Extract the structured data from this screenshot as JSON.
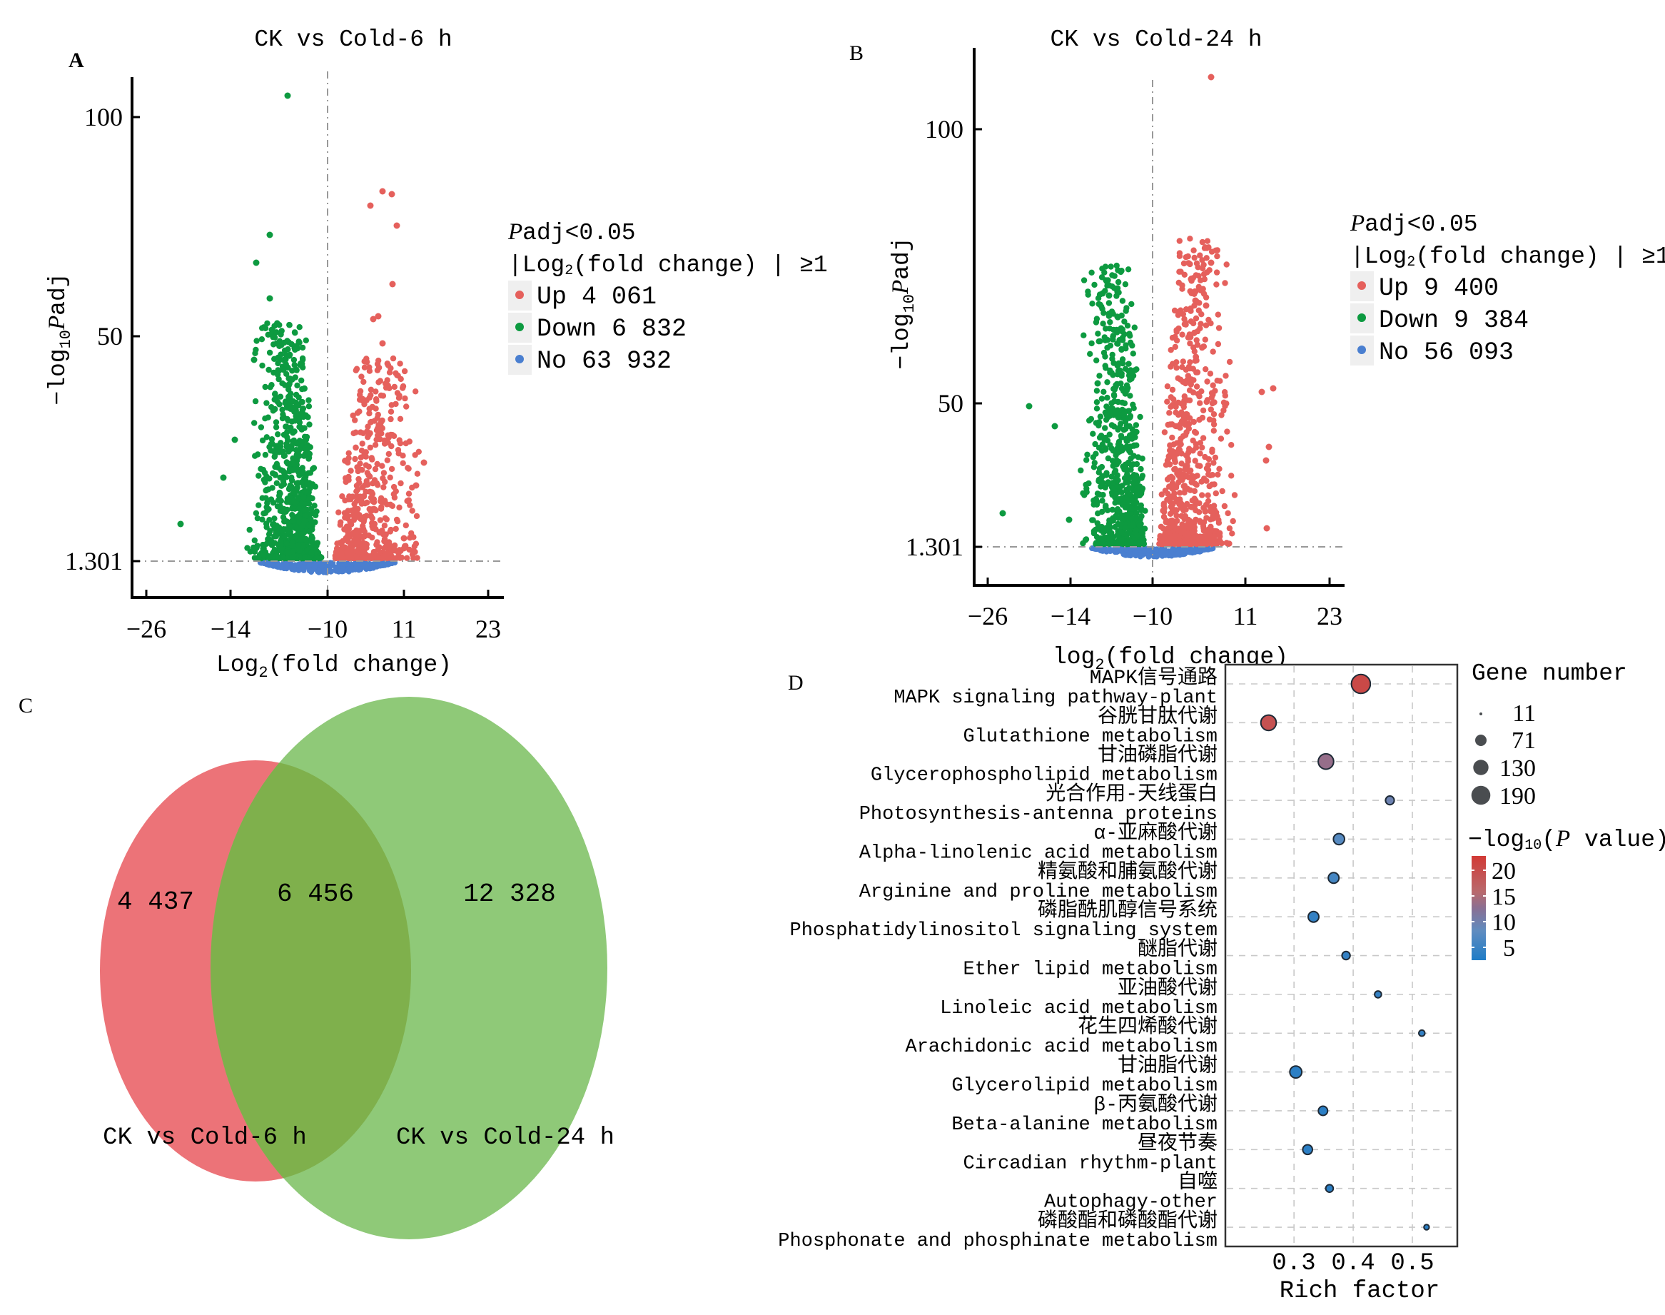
{
  "panels": {
    "A": {
      "letter": "A"
    },
    "B": {
      "letter": "B"
    },
    "C": {
      "letter": "C"
    },
    "D": {
      "letter": "D"
    }
  },
  "colors": {
    "up": "#e5605c",
    "down": "#0d9a40",
    "no": "#4a7fd0",
    "venn_left": "#ec7378",
    "venn_right": "#86c56e",
    "venn_overlap": "#7fb04c",
    "colorbar_high": "#d23a35",
    "colorbar_mid": "#8a6f93",
    "colorbar_low": "#1e7cc6"
  },
  "chart_data": [
    {
      "id": "A",
      "type": "scatter",
      "title": "CK vs Cold-6 h",
      "xlabel": "Log2(fold change)",
      "xlabel_base": "Log",
      "xlabel_sub": "2",
      "xlabel_rest": "(fold change)",
      "ylabel": "-log10 Padj",
      "ylabel_prefix": "−log",
      "ylabel_sub": "10",
      "ylabel_italic": "P",
      "ylabel_rest": "adj",
      "x_ticks": [
        "−26",
        "−14",
        "−10",
        "11",
        "23"
      ],
      "y_ticks": [
        "100",
        "50",
        "1.301"
      ],
      "threshold_y": "1.301",
      "legend": {
        "title_italic": "P",
        "title_rest": "adj<0.05",
        "subtitle": "|Log2(fold change)|≥1",
        "subtitle_base": "|Log",
        "subtitle_sub": "2",
        "subtitle_rest": "(fold change) | ≥1",
        "entries": [
          {
            "name": "Up",
            "count": "4 061",
            "label": "Up 4 061",
            "color_key": "up"
          },
          {
            "name": "Down",
            "count": "6 832",
            "label": "Down 6 832",
            "color_key": "down"
          },
          {
            "name": "No",
            "count": "63 932",
            "label": "No 63 932",
            "color_key": "no"
          }
        ]
      },
      "series": [
        {
          "name": "Up",
          "count": 4061
        },
        {
          "name": "Down",
          "count": 6832
        },
        {
          "name": "No",
          "count": 63932
        }
      ],
      "max_points_approx": {
        "down_max_y": 108,
        "up_max_y": 91
      }
    },
    {
      "id": "B",
      "type": "scatter",
      "title": "CK vs Cold-24 h",
      "xlabel": "log2(fold change)",
      "xlabel_base": "log",
      "xlabel_sub": "2",
      "xlabel_rest": "(fold change)",
      "ylabel": "-log10 Padj",
      "ylabel_prefix": "−log",
      "ylabel_sub": "10",
      "ylabel_italic": "P",
      "ylabel_rest": "adj",
      "x_ticks": [
        "−26",
        "−14",
        "−10",
        "11",
        "23"
      ],
      "y_ticks": [
        "100",
        "50",
        "1.301"
      ],
      "threshold_y": "1.301",
      "legend": {
        "title_italic": "P",
        "title_rest": "adj<0.05",
        "subtitle": "|Log2(fold change)|≥1",
        "subtitle_base": "|Log",
        "subtitle_sub": "2",
        "subtitle_rest": "(fold change) | ≥1",
        "entries": [
          {
            "name": "Up",
            "count": "9 400",
            "label": "Up 9 400",
            "color_key": "up"
          },
          {
            "name": "Down",
            "count": "9 384",
            "label": "Down 9 384",
            "color_key": "down"
          },
          {
            "name": "No",
            "count": "56 093",
            "label": "No 56 093",
            "color_key": "no"
          }
        ]
      },
      "series": [
        {
          "name": "Up",
          "count": 9400
        },
        {
          "name": "Down",
          "count": 9384
        },
        {
          "name": "No",
          "count": 56093
        }
      ],
      "max_points_approx": {
        "down_max_y": 68,
        "up_max_y": 110
      }
    },
    {
      "id": "C",
      "type": "venn",
      "sets": [
        {
          "name": "CK vs Cold-6 h",
          "only": "4 437"
        },
        {
          "name": "CK vs Cold-24 h",
          "only": "12 328"
        }
      ],
      "overlap": "6 456",
      "values": {
        "left_only": 4437,
        "overlap": 6456,
        "right_only": 12328
      }
    },
    {
      "id": "D",
      "type": "scatter",
      "subtype": "bubble",
      "xlabel": "Rich factor",
      "x_ticks": [
        "0.3",
        "0.4",
        "0.5"
      ],
      "xlim": [
        0.184,
        0.576
      ],
      "categories": [
        {
          "zh": "MAPK信号通路",
          "en": "MAPK signaling pathway-plant",
          "rich": 0.413,
          "genes": 190,
          "neglog10p": 21
        },
        {
          "zh": "谷胱甘肽代谢",
          "en": "Glutathione metabolism",
          "rich": 0.257,
          "genes": 125,
          "neglog10p": 20
        },
        {
          "zh": "甘油磷脂代谢",
          "en": "Glycerophospholipid metabolism",
          "rich": 0.354,
          "genes": 125,
          "neglog10p": 14
        },
        {
          "zh": "光合作用-天线蛋白",
          "en": "Photosynthesis-antenna proteins",
          "rich": 0.462,
          "genes": 40,
          "neglog10p": 11
        },
        {
          "zh": "α-亚麻酸代谢",
          "en": "Alpha-linolenic acid metabolism",
          "rich": 0.376,
          "genes": 65,
          "neglog10p": 9
        },
        {
          "zh": "精氨酸和脯氨酸代谢",
          "en": "Arginine and proline metabolism",
          "rich": 0.367,
          "genes": 60,
          "neglog10p": 7
        },
        {
          "zh": "磷脂酰肌醇信号系统",
          "en": "Phosphatidylinositol signaling system",
          "rich": 0.333,
          "genes": 60,
          "neglog10p": 5
        },
        {
          "zh": "醚脂代谢",
          "en": "Ether lipid metabolism",
          "rich": 0.388,
          "genes": 35,
          "neglog10p": 5
        },
        {
          "zh": "亚油酸代谢",
          "en": "Linoleic acid metabolism",
          "rich": 0.442,
          "genes": 25,
          "neglog10p": 5
        },
        {
          "zh": "花生四烯酸代谢",
          "en": "Arachidonic acid metabolism",
          "rich": 0.516,
          "genes": 20,
          "neglog10p": 5
        },
        {
          "zh": "甘油脂代谢",
          "en": "Glycerolipid metabolism",
          "rich": 0.303,
          "genes": 75,
          "neglog10p": 4
        },
        {
          "zh": "β-丙氨酸代谢",
          "en": "Beta-alanine metabolism",
          "rich": 0.349,
          "genes": 45,
          "neglog10p": 4
        },
        {
          "zh": "昼夜节奏",
          "en": "Circadian rhythm-plant",
          "rich": 0.323,
          "genes": 50,
          "neglog10p": 4
        },
        {
          "zh": "自噬",
          "en": "Autophagy-other",
          "rich": 0.36,
          "genes": 30,
          "neglog10p": 4
        },
        {
          "zh": "磷酸酯和磷酸酯代谢",
          "en": "Phosphonate and phosphinate metabolism",
          "rich": 0.524,
          "genes": 15,
          "neglog10p": 4
        }
      ],
      "size_legend": {
        "title": "Gene number",
        "values": [
          "11",
          "71",
          "130",
          "190"
        ]
      },
      "color_legend": {
        "title_prefix": "−log",
        "title_sub": "10",
        "title_open": "(",
        "title_italic": "P",
        "title_rest": " value)",
        "ticks": [
          "20",
          "15",
          "10",
          "5"
        ],
        "range": [
          2.5,
          22.8
        ]
      }
    }
  ]
}
